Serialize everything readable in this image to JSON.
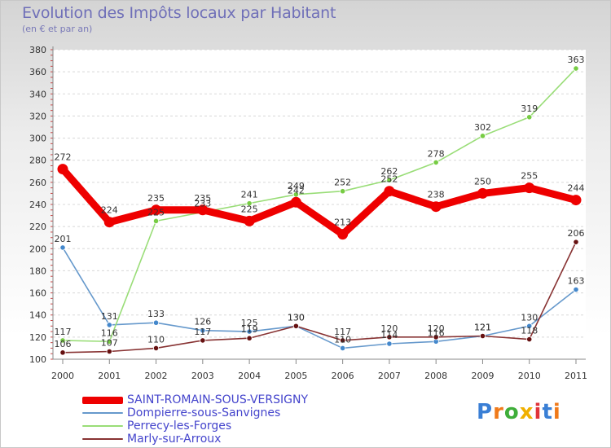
{
  "title": "Evolution des Impôts locaux par Habitant",
  "subtitle": "(en € et par an)",
  "logo_text": "Proxiti",
  "chart_data": {
    "type": "line",
    "title": "Evolution des Impôts locaux par Habitant",
    "ylabel": "(en € et par an)",
    "xlabel": "",
    "x": [
      "2000",
      "2001",
      "2002",
      "2003",
      "2004",
      "2005",
      "2006",
      "2007",
      "2008",
      "2009",
      "2010",
      "2011"
    ],
    "ylim": [
      100,
      380
    ],
    "yticks": [
      100,
      120,
      140,
      160,
      180,
      200,
      220,
      240,
      260,
      280,
      300,
      320,
      340,
      360,
      380
    ],
    "grid": true,
    "legend_position": "bottom-left",
    "series": [
      {
        "name": "SAINT-ROMAIN-SOUS-VERSIGNY",
        "color": "#ee0000",
        "marker": "#ee0000",
        "emphasis": true,
        "values": [
          272,
          224,
          235,
          235,
          225,
          242,
          213,
          252,
          238,
          250,
          255,
          244
        ]
      },
      {
        "name": "Dompierre-sous-Sanvignes",
        "color": "#6699cc",
        "marker": "#4488cc",
        "values": [
          201,
          131,
          133,
          126,
          125,
          130,
          110,
          114,
          116,
          121,
          130,
          163
        ]
      },
      {
        "name": "Perrecy-les-Forges",
        "color": "#99dd77",
        "marker": "#77cc44",
        "values": [
          117,
          116,
          225,
          233,
          241,
          249,
          252,
          262,
          278,
          302,
          319,
          363
        ]
      },
      {
        "name": "Marly-sur-Arroux",
        "color": "#883333",
        "marker": "#661111",
        "values": [
          106,
          107,
          110,
          117,
          119,
          130,
          117,
          120,
          120,
          121,
          118,
          206
        ]
      }
    ]
  }
}
